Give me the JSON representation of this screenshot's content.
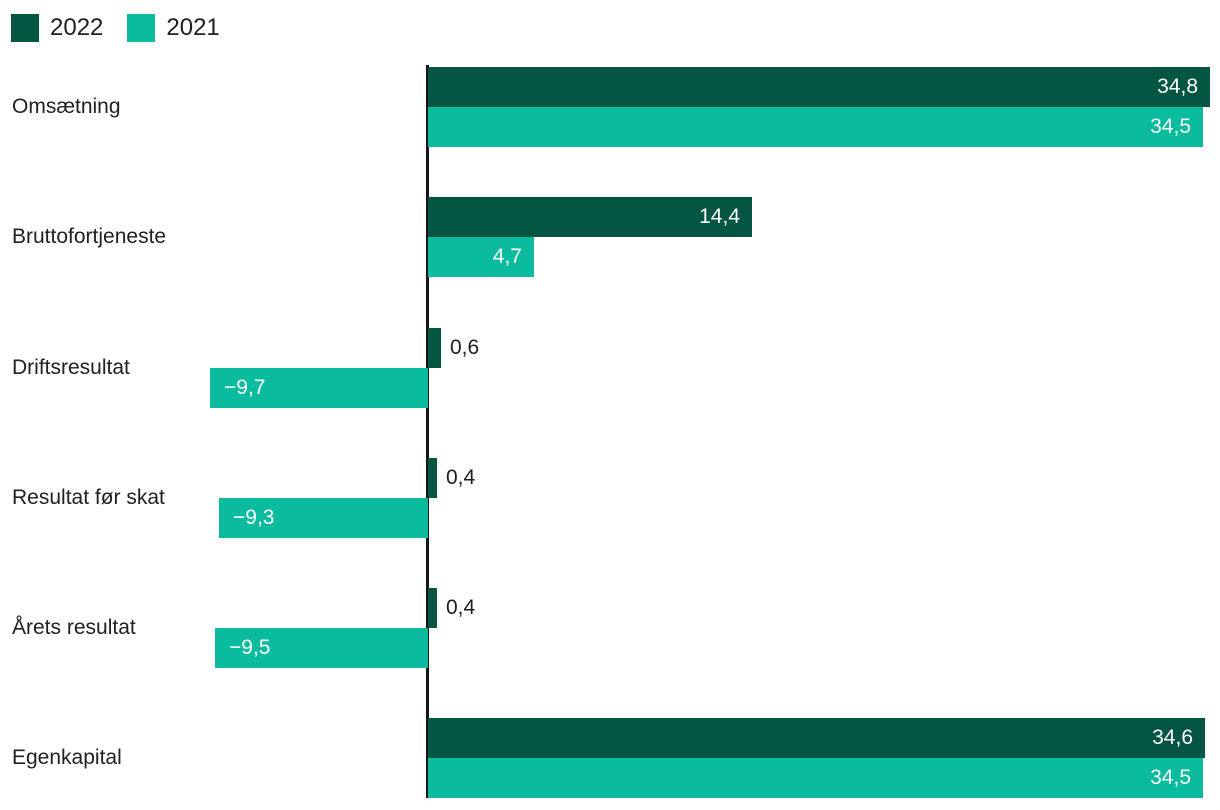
{
  "chart_data": {
    "type": "bar",
    "orientation": "horizontal",
    "title": "",
    "xlabel": "",
    "ylabel": "",
    "xlim": [
      -9.7,
      34.8
    ],
    "grid": false,
    "legend_position": "top-left",
    "baseline_color": "#161616",
    "text_color": "#212121",
    "categories": [
      "Omsætning",
      "Bruttofortjeneste",
      "Driftsresultat",
      "Resultat før skat",
      "Årets resultat",
      "Egenkapital"
    ],
    "series": [
      {
        "name": "2022",
        "color": "#045541",
        "values": [
          34.8,
          14.4,
          0.6,
          0.4,
          0.4,
          34.6
        ],
        "labels": [
          "34,8",
          "14,4",
          "0,6",
          "0,4",
          "0,4",
          "34,6"
        ]
      },
      {
        "name": "2021",
        "color": "#0abc9d",
        "values": [
          34.5,
          4.7,
          -9.7,
          -9.3,
          -9.5,
          34.5
        ],
        "labels": [
          "34,5",
          "4,7",
          "−9,7",
          "−9,3",
          "−9,5",
          "34,5"
        ]
      }
    ]
  }
}
